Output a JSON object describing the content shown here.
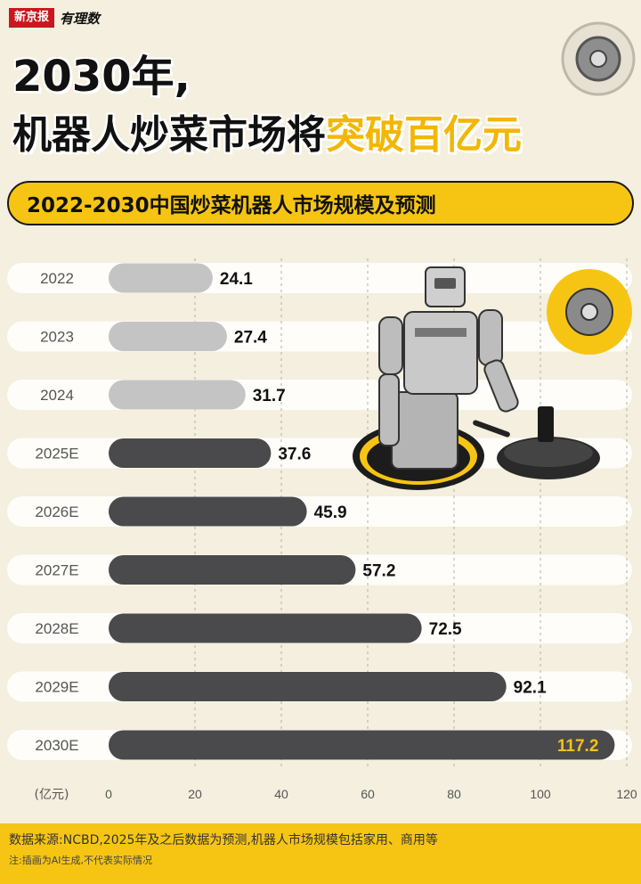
{
  "brand": {
    "name": "新京报",
    "column": "有理数"
  },
  "headline": {
    "line1": "2030年,",
    "line2_normal": "机器人炒菜市场将",
    "line2_highlight": "突破百亿元"
  },
  "subtitle": "2022-2030中国炒菜机器人市场规模及预测",
  "chart_data": {
    "type": "bar",
    "orientation": "horizontal",
    "categories": [
      "2022",
      "2023",
      "2024",
      "2025E",
      "2026E",
      "2027E",
      "2028E",
      "2029E",
      "2030E"
    ],
    "values": [
      24.1,
      27.4,
      31.7,
      37.6,
      45.9,
      57.2,
      72.5,
      92.1,
      117.2
    ],
    "value_labels": [
      "24.1",
      "27.4",
      "31.7",
      "37.6",
      "45.9",
      "57.2",
      "72.5",
      "92.1",
      "117.2"
    ],
    "xlabel": "(亿元)",
    "xlim": [
      0,
      120
    ],
    "xticks": [
      "0",
      "20",
      "40",
      "60",
      "80",
      "100",
      "120"
    ],
    "grid": true,
    "colors": {
      "actual": "#c4c4c4",
      "forecast": "#4a4a4c",
      "highlight_label": "#f2c21a"
    },
    "forecast_start_index": 3
  },
  "footer": {
    "source": "数据来源:NCBD,2025年及之后数据为预测,机器人市场规模包括家用、商用等",
    "note": "注:插画为AI生成,不代表实际情况"
  },
  "illustration": {
    "icon": "robot-cooking-illustration"
  },
  "colors": {
    "background": "#f4efde",
    "accent": "#f6c514"
  }
}
